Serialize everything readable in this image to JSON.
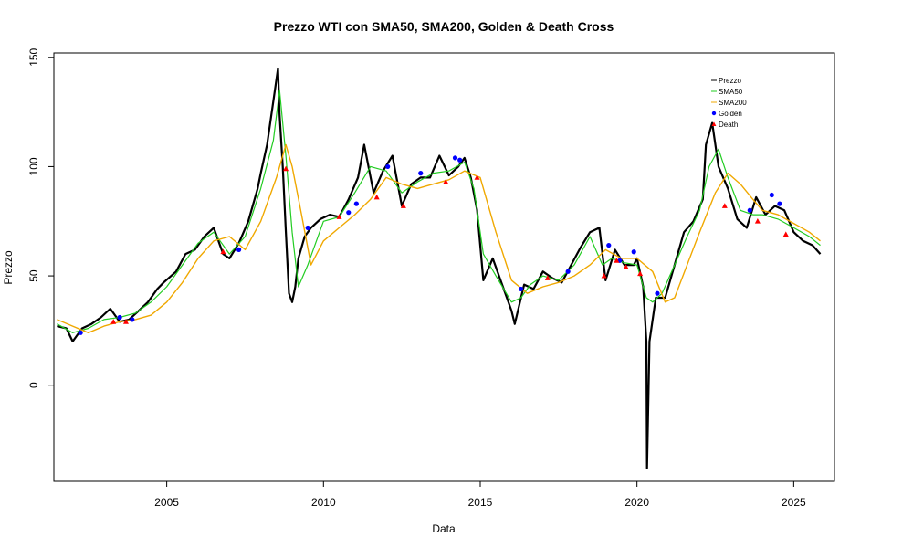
{
  "chart_data": {
    "type": "line",
    "title": "Prezzo WTI con SMA50, SMA200, Golden & Death Cross",
    "xlabel": "Data",
    "ylabel": "Prezzo",
    "xlim": [
      2001.4,
      2026.3
    ],
    "ylim": [
      -44,
      152
    ],
    "x_ticks": [
      {
        "value": 2005,
        "label": "2005"
      },
      {
        "value": 2010,
        "label": "2010"
      },
      {
        "value": 2015,
        "label": "2015"
      },
      {
        "value": 2020,
        "label": "2020"
      },
      {
        "value": 2025,
        "label": "2025"
      }
    ],
    "y_ticks": [
      {
        "value": 0,
        "label": "0"
      },
      {
        "value": 50,
        "label": "50"
      },
      {
        "value": 100,
        "label": "100"
      },
      {
        "value": 150,
        "label": "150"
      }
    ],
    "grid": false,
    "legend_position": "top-right",
    "legend": [
      {
        "label": "Prezzo",
        "symbol": "line",
        "color": "#000000"
      },
      {
        "label": "SMA50",
        "symbol": "line",
        "color": "#22cc22"
      },
      {
        "label": "SMA200",
        "symbol": "line",
        "color": "#f0a800"
      },
      {
        "label": "Golden",
        "symbol": "circle",
        "color": "#0000ff"
      },
      {
        "label": "Death",
        "symbol": "triangle",
        "color": "#ff0000"
      }
    ],
    "series": [
      {
        "name": "Prezzo",
        "color": "#000000",
        "x": [
          2001.5,
          2001.8,
          2002.0,
          2002.3,
          2002.6,
          2002.9,
          2003.2,
          2003.5,
          2003.8,
          2004.1,
          2004.4,
          2004.7,
          2004.9,
          2005.3,
          2005.6,
          2005.9,
          2006.2,
          2006.5,
          2006.8,
          2007.0,
          2007.3,
          2007.6,
          2007.9,
          2008.0,
          2008.2,
          2008.4,
          2008.5,
          2008.55,
          2008.6,
          2008.7,
          2008.8,
          2008.9,
          2009.0,
          2009.1,
          2009.2,
          2009.4,
          2009.6,
          2009.9,
          2010.2,
          2010.5,
          2010.8,
          2011.1,
          2011.3,
          2011.6,
          2011.9,
          2012.2,
          2012.5,
          2012.8,
          2013.1,
          2013.4,
          2013.7,
          2014.0,
          2014.3,
          2014.5,
          2014.7,
          2014.9,
          2015.1,
          2015.4,
          2015.7,
          2016.0,
          2016.1,
          2016.4,
          2016.7,
          2017.0,
          2017.3,
          2017.6,
          2017.9,
          2018.2,
          2018.5,
          2018.8,
          2019.0,
          2019.3,
          2019.6,
          2019.9,
          2020.0,
          2020.2,
          2020.3,
          2020.32,
          2020.4,
          2020.6,
          2020.9,
          2021.2,
          2021.5,
          2021.8,
          2022.1,
          2022.2,
          2022.4,
          2022.6,
          2022.9,
          2023.2,
          2023.5,
          2023.8,
          2024.1,
          2024.4,
          2024.7,
          2025.0,
          2025.3,
          2025.6,
          2025.85
        ],
        "values": [
          27,
          26,
          20,
          26,
          28,
          31,
          35,
          29,
          30,
          34,
          38,
          44,
          47,
          52,
          60,
          62,
          68,
          72,
          60,
          58,
          65,
          75,
          90,
          97,
          110,
          130,
          140,
          145,
          124,
          100,
          70,
          42,
          38,
          45,
          58,
          68,
          72,
          76,
          78,
          77,
          85,
          95,
          110,
          88,
          98,
          105,
          82,
          92,
          95,
          95,
          105,
          96,
          100,
          104,
          95,
          80,
          48,
          58,
          46,
          34,
          28,
          46,
          44,
          52,
          49,
          47,
          55,
          63,
          70,
          72,
          48,
          62,
          55,
          55,
          58,
          45,
          20,
          -38,
          20,
          40,
          40,
          55,
          70,
          75,
          85,
          110,
          120,
          100,
          90,
          76,
          72,
          86,
          78,
          82,
          80,
          70,
          66,
          64,
          60
        ]
      },
      {
        "name": "SMA50",
        "color": "#22cc22",
        "x": [
          2001.5,
          2002.0,
          2002.5,
          2003.0,
          2003.5,
          2004.0,
          2004.5,
          2005.0,
          2005.5,
          2006.0,
          2006.5,
          2007.0,
          2007.5,
          2008.0,
          2008.4,
          2008.6,
          2008.8,
          2009.0,
          2009.2,
          2009.5,
          2010.0,
          2010.5,
          2011.0,
          2011.5,
          2012.0,
          2012.5,
          2013.0,
          2013.5,
          2014.0,
          2014.5,
          2014.8,
          2015.1,
          2015.5,
          2016.0,
          2016.3,
          2016.6,
          2017.0,
          2017.5,
          2018.0,
          2018.5,
          2018.9,
          2019.2,
          2019.6,
          2020.0,
          2020.3,
          2020.5,
          2020.8,
          2021.2,
          2021.6,
          2022.0,
          2022.3,
          2022.6,
          2022.9,
          2023.3,
          2023.7,
          2024.0,
          2024.5,
          2025.0,
          2025.5,
          2025.85
        ],
        "values": [
          28,
          24,
          26,
          30,
          31,
          33,
          38,
          45,
          55,
          65,
          70,
          60,
          68,
          90,
          112,
          135,
          105,
          70,
          45,
          55,
          75,
          77,
          88,
          100,
          98,
          88,
          93,
          97,
          98,
          102,
          90,
          60,
          50,
          38,
          40,
          46,
          50,
          48,
          55,
          68,
          55,
          58,
          56,
          55,
          40,
          38,
          42,
          55,
          68,
          80,
          100,
          108,
          95,
          80,
          78,
          78,
          76,
          72,
          68,
          64
        ]
      },
      {
        "name": "SMA200",
        "color": "#f0a800",
        "x": [
          2001.5,
          2002.0,
          2002.5,
          2003.0,
          2003.5,
          2004.0,
          2004.5,
          2005.0,
          2005.5,
          2006.0,
          2006.5,
          2007.0,
          2007.5,
          2008.0,
          2008.5,
          2008.8,
          2009.0,
          2009.3,
          2009.6,
          2010.0,
          2010.5,
          2011.0,
          2011.5,
          2012.0,
          2012.5,
          2013.0,
          2013.5,
          2014.0,
          2014.5,
          2015.0,
          2015.5,
          2016.0,
          2016.5,
          2017.0,
          2017.5,
          2018.0,
          2018.5,
          2019.0,
          2019.5,
          2020.0,
          2020.5,
          2020.9,
          2021.2,
          2021.6,
          2022.0,
          2022.5,
          2022.9,
          2023.3,
          2023.7,
          2024.0,
          2024.5,
          2025.0,
          2025.5,
          2025.85
        ],
        "values": [
          30,
          27,
          24,
          27,
          29,
          30,
          32,
          38,
          47,
          58,
          66,
          68,
          62,
          75,
          95,
          110,
          100,
          78,
          55,
          66,
          72,
          78,
          85,
          95,
          92,
          90,
          92,
          94,
          98,
          95,
          70,
          48,
          42,
          45,
          47,
          50,
          55,
          62,
          58,
          58,
          52,
          38,
          40,
          55,
          70,
          88,
          97,
          92,
          85,
          80,
          78,
          74,
          70,
          66
        ]
      }
    ],
    "golden_cross": {
      "name": "Golden",
      "color": "#0000ff",
      "x": [
        2002.25,
        2003.5,
        2003.9,
        2007.3,
        2009.5,
        2010.8,
        2011.05,
        2012.05,
        2013.1,
        2014.2,
        2014.35,
        2016.3,
        2017.8,
        2019.1,
        2019.45,
        2019.9,
        2020.65,
        2023.6,
        2024.3,
        2024.55
      ],
      "values": [
        24,
        31,
        30,
        62,
        72,
        79,
        83,
        100,
        97,
        104,
        103,
        44,
        52,
        64,
        57,
        61,
        42,
        80,
        87,
        83
      ]
    },
    "death_cross": {
      "name": "Death",
      "color": "#ff0000",
      "x": [
        2003.3,
        2003.7,
        2006.8,
        2008.8,
        2010.5,
        2011.7,
        2012.55,
        2013.9,
        2014.9,
        2017.15,
        2018.95,
        2019.35,
        2019.65,
        2020.1,
        2022.8,
        2023.85,
        2024.75
      ],
      "values": [
        29,
        29,
        61,
        99,
        77,
        86,
        82,
        93,
        95,
        49,
        50,
        57,
        54,
        51,
        82,
        75,
        69
      ]
    }
  }
}
